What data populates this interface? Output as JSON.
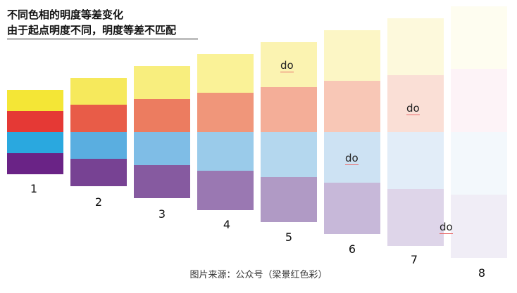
{
  "title_line1": "不同色相的明度等差变化",
  "title_line2": "由于起点明度不同，明度等差不匹配",
  "columns": [
    {
      "label": "1",
      "colors": [
        "#f4e636",
        "#e53935",
        "#2aa8df",
        "#6a2386"
      ]
    },
    {
      "label": "2",
      "colors": [
        "#f6e95c",
        "#e85c48",
        "#5aaee0",
        "#774293"
      ]
    },
    {
      "label": "3",
      "colors": [
        "#f8ee7e",
        "#ec7c60",
        "#7fbde6",
        "#865aa0"
      ]
    },
    {
      "label": "4",
      "colors": [
        "#faf297",
        "#f0967a",
        "#9acbea",
        "#9a78b2"
      ]
    },
    {
      "label": "5",
      "colors": [
        "#fbf3b1",
        "#f4ae98",
        "#b4d7ee",
        "#b09ac5"
      ]
    },
    {
      "label": "6",
      "colors": [
        "#fcf6c5",
        "#f8c7b6",
        "#cde2f3",
        "#c7b8d9"
      ]
    },
    {
      "label": "7",
      "colors": [
        "#fdf9dc",
        "#fadfd6",
        "#e2edf8",
        "#ded5e9"
      ]
    },
    {
      "label": "8",
      "colors": [
        "#fefdf0",
        "#fdf3f7",
        "#f3f8fc",
        "#f0edf6"
      ]
    }
  ],
  "do_labels": [
    "do",
    "do",
    "do",
    "do"
  ],
  "footer": "图片来源：公众号（梁景红色彩）"
}
